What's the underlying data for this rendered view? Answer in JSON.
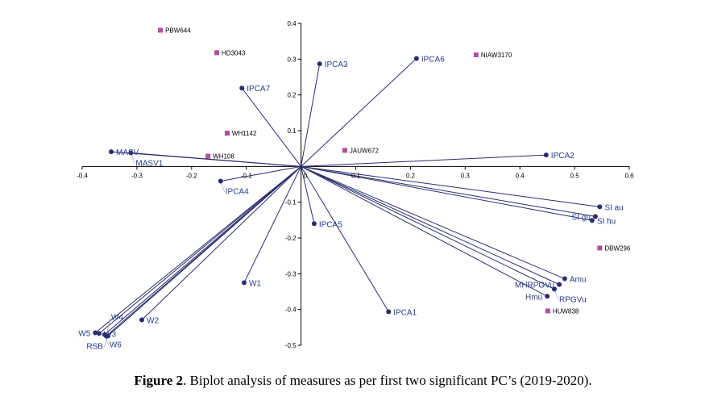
{
  "chart_data": {
    "type": "scatter",
    "subtype": "biplot",
    "xlim": [
      -0.4,
      0.6
    ],
    "ylim": [
      -0.5,
      0.4
    ],
    "x_ticks": [
      "-0.4",
      "-0.3",
      "-0.2",
      "-0.1",
      "0",
      "0.1",
      "0.2",
      "0.3",
      "0.4",
      "0.5",
      "0.6"
    ],
    "y_ticks": [
      "0.4",
      "0.3",
      "0.2",
      "0.1",
      "0",
      "-0.1",
      "-0.2",
      "-0.3",
      "-0.4",
      "-0.5"
    ],
    "grid": false,
    "colors": {
      "vector": "#2b2d6e",
      "vector_label": "#2b3a8c",
      "genotype": "#b24f9c"
    },
    "vectors": [
      {
        "label": "IPCA1",
        "x": 0.16,
        "y": -0.406
      },
      {
        "label": "IPCA2",
        "x": 0.448,
        "y": 0.032
      },
      {
        "label": "IPCA3",
        "x": 0.034,
        "y": 0.287
      },
      {
        "label": "IPCA4",
        "x": -0.147,
        "y": -0.041
      },
      {
        "label": "IPCA5",
        "x": 0.024,
        "y": -0.16
      },
      {
        "label": "IPCA6",
        "x": 0.211,
        "y": 0.302
      },
      {
        "label": "IPCA7",
        "x": -0.108,
        "y": 0.219
      },
      {
        "label": "MASV",
        "x": -0.347,
        "y": 0.041
      },
      {
        "label": "MASV1",
        "x": -0.311,
        "y": 0.038
      },
      {
        "label": "W1",
        "x": -0.104,
        "y": -0.325
      },
      {
        "label": "W2",
        "x": -0.291,
        "y": -0.429
      },
      {
        "label": "W3",
        "x": -0.369,
        "y": -0.467
      },
      {
        "label": "W5",
        "x": -0.376,
        "y": -0.465
      },
      {
        "label": "W6",
        "x": -0.359,
        "y": -0.47
      },
      {
        "label": "RSB",
        "x": -0.353,
        "y": -0.474
      },
      {
        "label": "W4",
        "x": -0.356,
        "y": -0.474
      },
      {
        "label": "SI au",
        "x": 0.546,
        "y": -0.113
      },
      {
        "label": "SI gu",
        "x": 0.538,
        "y": -0.14
      },
      {
        "label": "SI hu",
        "x": 0.532,
        "y": -0.151
      },
      {
        "label": "Amu",
        "x": 0.482,
        "y": -0.314
      },
      {
        "label": "MHRPGVu",
        "x": 0.472,
        "y": -0.33
      },
      {
        "label": "RPGVu",
        "x": 0.463,
        "y": -0.343
      },
      {
        "label": "Hmu",
        "x": 0.45,
        "y": -0.363
      }
    ],
    "genotypes": [
      {
        "label": "PBW644",
        "x": -0.257,
        "y": 0.381
      },
      {
        "label": "HD3043",
        "x": -0.154,
        "y": 0.318
      },
      {
        "label": "NIAW3170",
        "x": 0.32,
        "y": 0.312
      },
      {
        "label": "WH1142",
        "x": -0.135,
        "y": 0.093
      },
      {
        "label": "WH108",
        "x": -0.17,
        "y": 0.029
      },
      {
        "label": "JAUW672",
        "x": 0.08,
        "y": 0.045
      },
      {
        "label": "DBW296",
        "x": 0.546,
        "y": -0.228
      },
      {
        "label": "HUW838",
        "x": 0.451,
        "y": -0.404
      }
    ]
  },
  "caption": {
    "label": "Figure 2",
    "text": ". Biplot analysis of measures as per first two significant PC’s (2019-2020)."
  }
}
